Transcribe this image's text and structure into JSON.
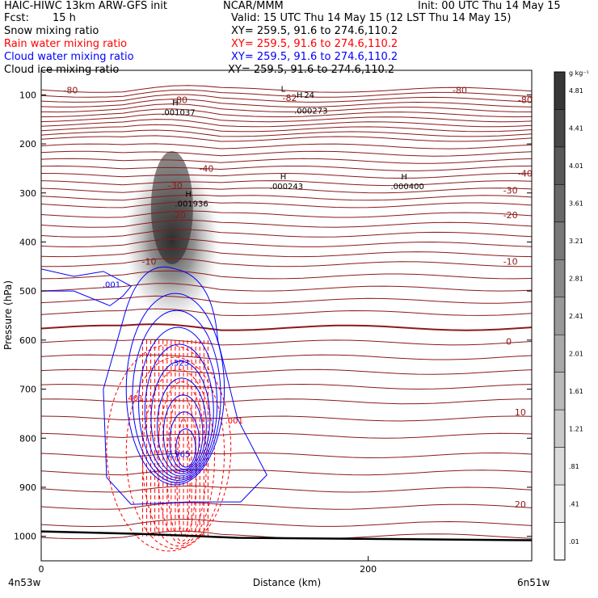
{
  "header": {
    "title": "HAIC-HIWC 13km ARW-GFS init",
    "org": "NCAR/MMM",
    "init": "Init: 00 UTC Thu 14 May 15",
    "fcst_label": "Fcst:",
    "fcst_value": "15 h",
    "valid": "Valid: 15 UTC Thu 14 May 15 (12 LST Thu 14 May 15)"
  },
  "fields": [
    {
      "name": "Snow mixing ratio",
      "xy": "XY= 259.5, 91.6 to 274.6,110.2",
      "color": "#000000"
    },
    {
      "name": "Rain water mixing ratio",
      "xy": "XY= 259.5, 91.6 to 274.6,110.2",
      "color": "#ff0000"
    },
    {
      "name": "Cloud water mixing ratio",
      "xy": "XY= 259.5, 91.6 to 274.6,110.2",
      "color": "#0000ff"
    },
    {
      "name": "Cloud ice mixing ratio",
      "xy": "XY= 259.5, 91.6 to 274.6,110.2",
      "color": "#000000"
    }
  ],
  "chart_data": {
    "type": "heatmap",
    "ylabel": "Pressure (hPa)",
    "xlabel": "Distance (km)",
    "x_ticks": [
      "0",
      "200"
    ],
    "y_ticks": [
      "100",
      "200",
      "300",
      "400",
      "500",
      "600",
      "700",
      "800",
      "900",
      "1000"
    ],
    "xlim": [
      0,
      300
    ],
    "ylim": [
      1050,
      50
    ],
    "left_endpoint": "4n53w",
    "right_endpoint": "6n51w",
    "colorbar": {
      "unit": "g kg⁻¹",
      "labels": [
        "4.81",
        "4.41",
        "4.01",
        "3.61",
        "3.21",
        "2.81",
        "2.41",
        "2.01",
        "1.61",
        "1.21",
        ".81",
        ".41",
        ".01"
      ],
      "min": 0.01,
      "max": 5.0
    },
    "snow_core": {
      "center_x_km": 80,
      "center_p_hpa": 330,
      "p_top": 240,
      "p_bottom": 590,
      "max_value": 4.0
    },
    "temperature_labels": [
      {
        "text": "-80",
        "x_km": 18,
        "p": 90
      },
      {
        "text": "-80",
        "x_km": 85,
        "p": 110
      },
      {
        "text": "-82",
        "x_km": 152,
        "p": 106
      },
      {
        "text": "-80",
        "x_km": 256,
        "p": 90
      },
      {
        "text": "-80",
        "x_km": 296,
        "p": 110
      },
      {
        "text": "-40",
        "x_km": 101,
        "p": 250
      },
      {
        "text": "-40",
        "x_km": 296,
        "p": 260
      },
      {
        "text": "-30",
        "x_km": 82,
        "p": 285
      },
      {
        "text": "-30",
        "x_km": 287,
        "p": 295
      },
      {
        "text": "-20",
        "x_km": 84,
        "p": 345
      },
      {
        "text": "-20",
        "x_km": 287,
        "p": 345
      },
      {
        "text": "-10",
        "x_km": 66,
        "p": 440
      },
      {
        "text": "-10",
        "x_km": 287,
        "p": 440
      },
      {
        "text": "0",
        "x_km": 286,
        "p": 603
      },
      {
        "text": "10",
        "x_km": 293,
        "p": 747
      },
      {
        "text": "20",
        "x_km": 293,
        "p": 935
      }
    ],
    "extrema_labels": [
      {
        "symbol": "H",
        "value": ".001037",
        "x_km": 82,
        "p": 122
      },
      {
        "symbol": "L",
        "value": "",
        "x_km": 148,
        "p": 94
      },
      {
        "symbol": "H",
        "value": "24",
        "x_km": 158,
        "p": 106
      },
      {
        "symbol": "",
        "value": ".000273",
        "x_km": 163,
        "p": 118
      },
      {
        "symbol": "H",
        "value": ".000243",
        "x_km": 148,
        "p": 272
      },
      {
        "symbol": "H",
        "value": ".000400",
        "x_km": 222,
        "p": 272
      },
      {
        "symbol": "H",
        "value": ".001936",
        "x_km": 90,
        "p": 308
      }
    ],
    "contour_labels": [
      {
        "text": ".001",
        "x_km": 43,
        "p": 492,
        "color": "#0000ff"
      },
      {
        "text": ".001",
        "x_km": 118,
        "p": 770,
        "color": "#ff0000"
      },
      {
        "text": ".401",
        "x_km": 57,
        "p": 724,
        "color": "#ff0000"
      },
      {
        "text": ".323",
        "x_km": 85,
        "p": 652,
        "color": "#0000ff"
      },
      {
        "text": "2.965",
        "x_km": 84,
        "p": 838,
        "color": "#0000ff"
      }
    ]
  }
}
